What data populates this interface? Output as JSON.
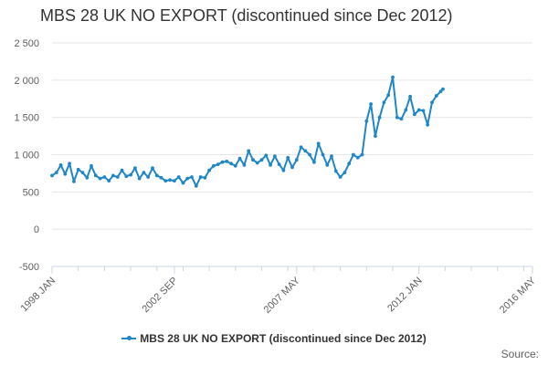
{
  "chart_data": {
    "type": "line",
    "title": "MBS 28 UK NO EXPORT (discontinued since Dec 2012)",
    "xlabel": "",
    "ylabel": "",
    "ylim": [
      -500,
      2500
    ],
    "yticks": [
      -500,
      0,
      500,
      1000,
      1500,
      2000,
      2500
    ],
    "ytick_labels": [
      "-500",
      "0",
      "500",
      "1 000",
      "1 500",
      "2 000",
      "2 500"
    ],
    "xlim": [
      "1998-01",
      "2016-05"
    ],
    "xticks": [
      "1998-01",
      "2002-09",
      "2007-05",
      "2012-01",
      "2016-05"
    ],
    "xtick_labels": [
      "1998 JAN",
      "2002 SEP",
      "2007 MAY",
      "2012 JAN",
      "2016 MAY"
    ],
    "grid": "horizontal",
    "legend_position": "bottom",
    "color": "#1f86c8",
    "series": [
      {
        "name": "MBS 28 UK NO EXPORT (discontinued since Dec 2012)",
        "x": [
          "1998-01",
          "1998-03",
          "1998-05",
          "1998-07",
          "1998-09",
          "1998-11",
          "1999-01",
          "1999-03",
          "1999-05",
          "1999-07",
          "1999-09",
          "1999-11",
          "2000-01",
          "2000-03",
          "2000-05",
          "2000-07",
          "2000-09",
          "2000-11",
          "2001-01",
          "2001-03",
          "2001-05",
          "2001-07",
          "2001-09",
          "2001-11",
          "2002-01",
          "2002-03",
          "2002-05",
          "2002-07",
          "2002-09",
          "2002-11",
          "2003-01",
          "2003-03",
          "2003-05",
          "2003-07",
          "2003-09",
          "2003-11",
          "2004-01",
          "2004-03",
          "2004-05",
          "2004-07",
          "2004-09",
          "2004-11",
          "2005-01",
          "2005-03",
          "2005-05",
          "2005-07",
          "2005-09",
          "2005-11",
          "2006-01",
          "2006-03",
          "2006-05",
          "2006-07",
          "2006-09",
          "2006-11",
          "2007-01",
          "2007-03",
          "2007-05",
          "2007-07",
          "2007-09",
          "2007-11",
          "2008-01",
          "2008-03",
          "2008-05",
          "2008-07",
          "2008-09",
          "2008-11",
          "2009-01",
          "2009-03",
          "2009-05",
          "2009-07",
          "2009-09",
          "2009-11",
          "2010-01",
          "2010-03",
          "2010-05",
          "2010-07",
          "2010-09",
          "2010-11",
          "2011-01",
          "2011-03",
          "2011-05",
          "2011-07",
          "2011-09",
          "2011-11",
          "2012-01",
          "2012-03",
          "2012-05",
          "2012-07",
          "2012-09",
          "2012-11",
          "2012-12"
        ],
        "values": [
          720,
          760,
          860,
          740,
          880,
          640,
          800,
          760,
          690,
          850,
          720,
          680,
          700,
          650,
          720,
          700,
          790,
          710,
          730,
          820,
          680,
          760,
          700,
          820,
          720,
          690,
          650,
          660,
          650,
          700,
          620,
          680,
          700,
          580,
          700,
          690,
          790,
          850,
          870,
          900,
          910,
          880,
          850,
          950,
          860,
          1050,
          930,
          890,
          930,
          990,
          860,
          980,
          870,
          790,
          960,
          830,
          930,
          1100,
          1050,
          1000,
          900,
          1150,
          1000,
          860,
          980,
          780,
          700,
          760,
          880,
          1000,
          960,
          1000,
          1450,
          1680,
          1250,
          1500,
          1700,
          1800,
          2040,
          1500,
          1480,
          1600,
          1780,
          1540,
          1600,
          1590,
          1400,
          1700,
          1790,
          1850,
          1880
        ]
      }
    ]
  },
  "legend": {
    "label": "MBS 28 UK NO EXPORT (discontinued since Dec 2012)"
  },
  "source_label": "Source:"
}
